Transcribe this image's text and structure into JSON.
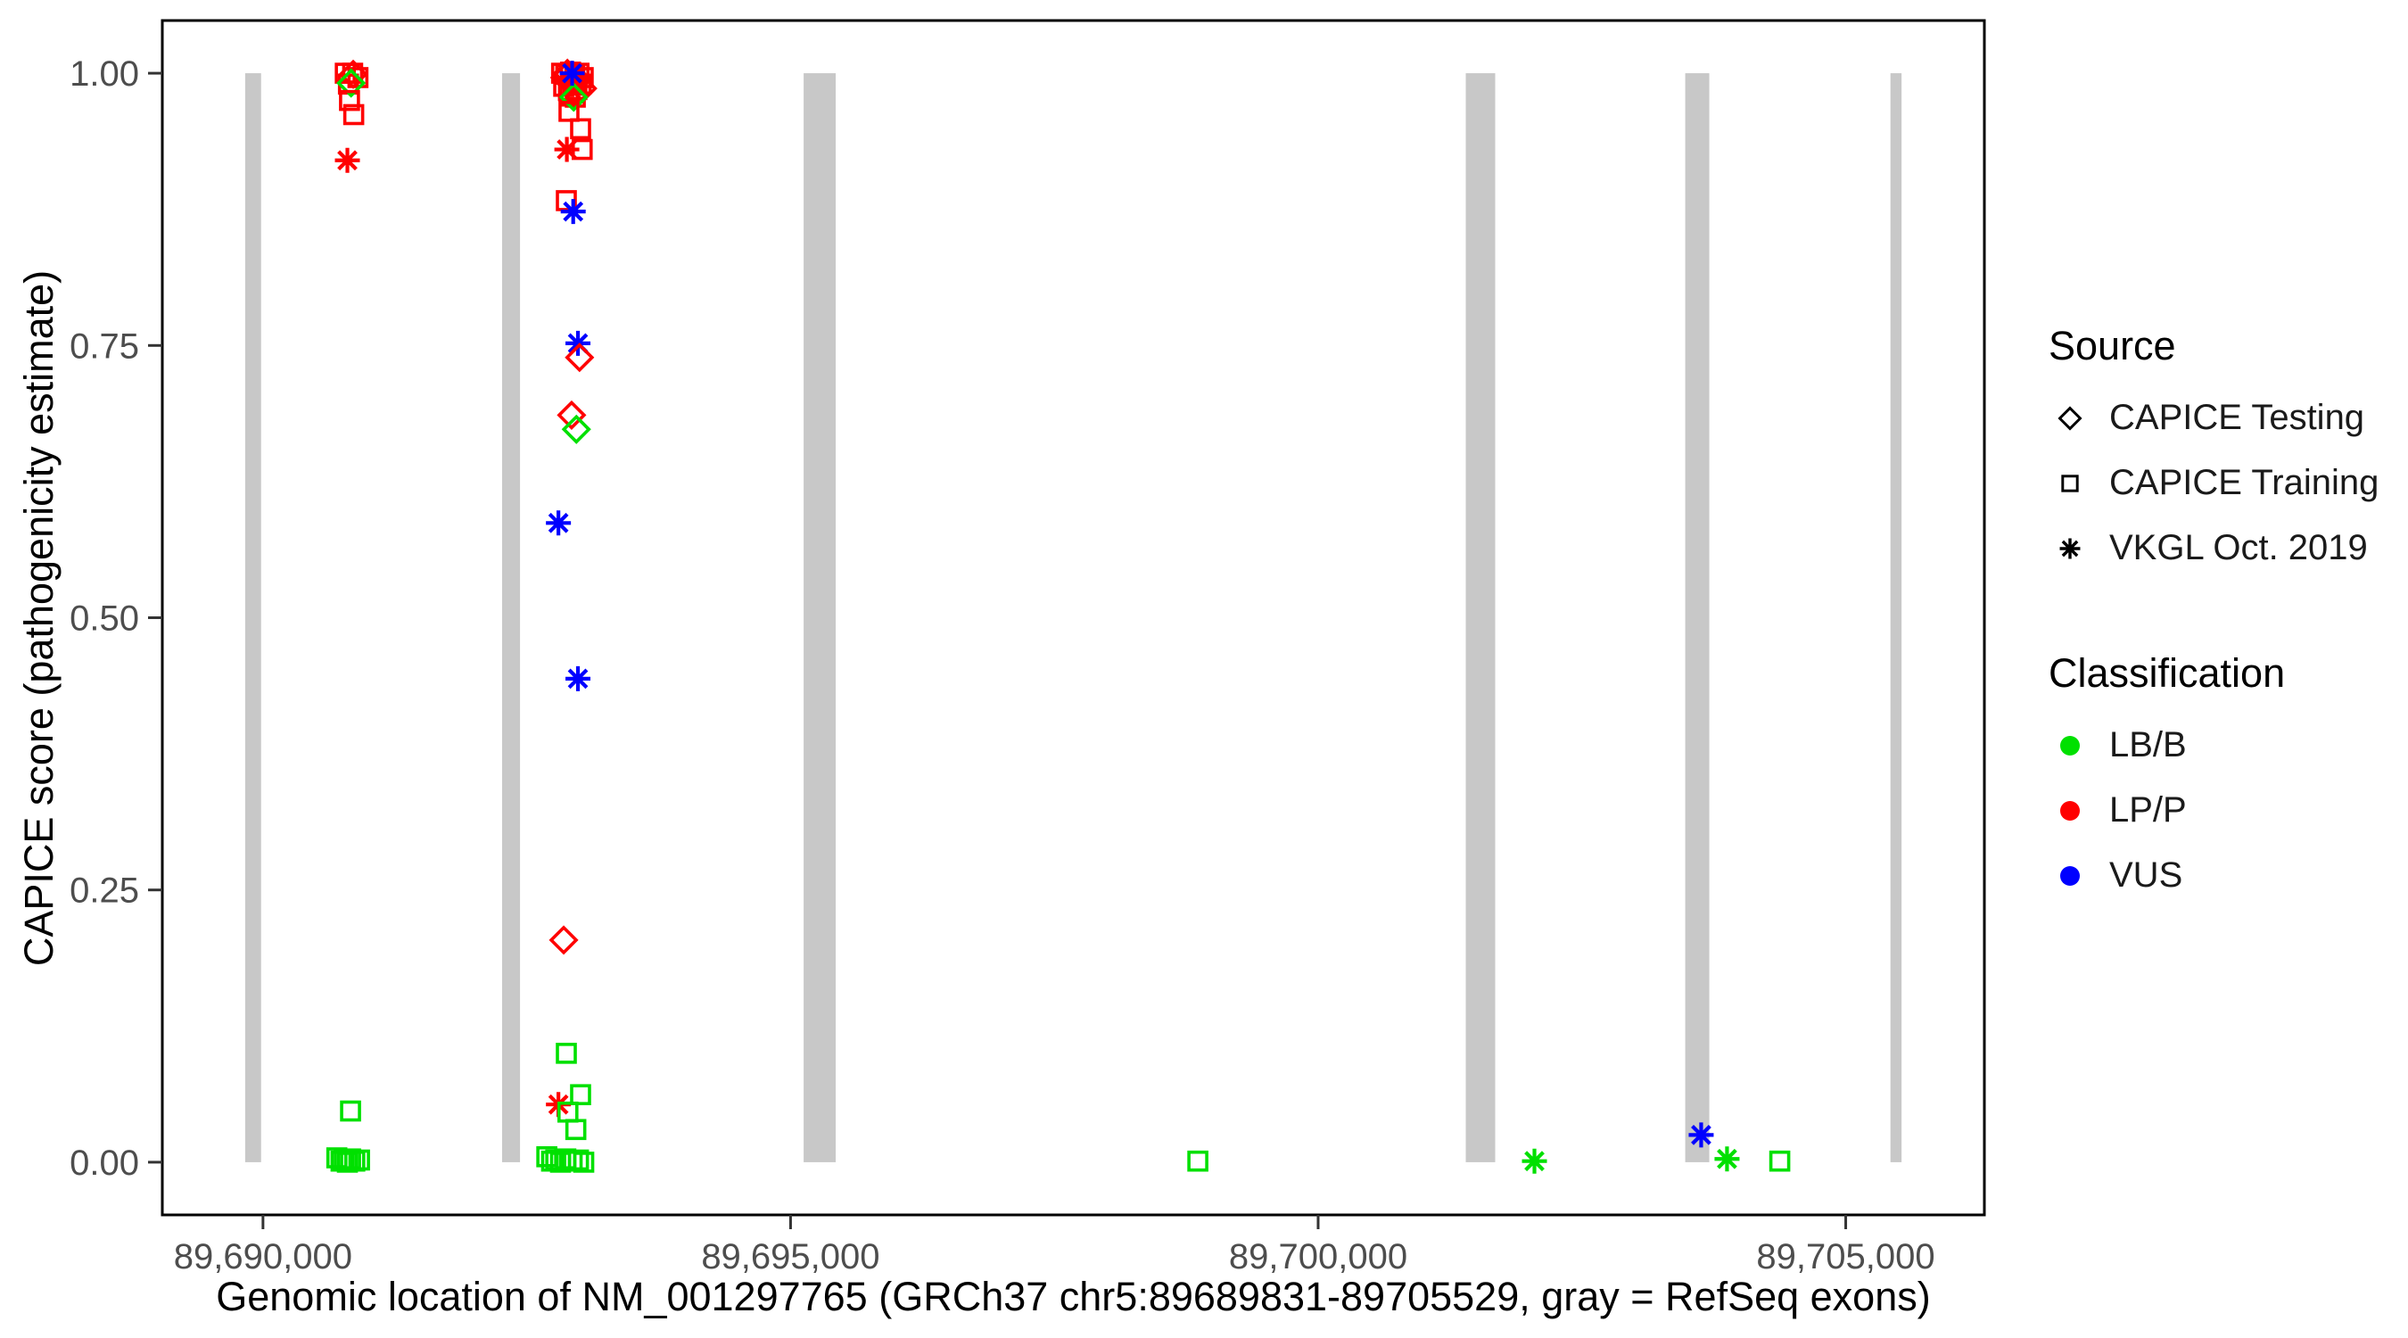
{
  "chart_data": {
    "type": "scatter",
    "title": "",
    "xlabel": "Genomic location of NM_001297765 (GRCh37 chr5:89689831-89705529, gray = RefSeq exons)",
    "ylabel": "CAPICE score (pathogenicity estimate)",
    "xlim": [
      89689046,
      89706314
    ],
    "ylim": [
      -0.0484,
      1.0484
    ],
    "grid": "off",
    "legend_position": "right",
    "x_axis": {
      "ticks": [
        89690000,
        89695000,
        89700000,
        89705000
      ],
      "tick_labels": [
        "89,690,000",
        "89,695,000",
        "89,700,000",
        "89,705,000"
      ]
    },
    "y_axis": {
      "ticks": [
        0.0,
        0.25,
        0.5,
        0.75,
        1.0
      ],
      "tick_labels": [
        "0.00",
        "0.25",
        "0.50",
        "0.75",
        "1.00"
      ]
    },
    "colors": {
      "LB/B": "#00E000",
      "LP/P": "#FF0000",
      "VUS": "#0000FF",
      "exon": "#C8C8C8",
      "axis_text": "#4d4d4d",
      "panel_border": "#000000"
    },
    "shape_by_source": {
      "CAPICE Testing": "diamond",
      "CAPICE Training": "square",
      "VKGL Oct. 2019": "asterisk"
    },
    "legend": {
      "source": {
        "title": "Source",
        "items": [
          {
            "label": "CAPICE Testing",
            "shape": "diamond"
          },
          {
            "label": "CAPICE Training",
            "shape": "square"
          },
          {
            "label": "VKGL Oct. 2019",
            "shape": "asterisk"
          }
        ]
      },
      "classification": {
        "title": "Classification",
        "items": [
          {
            "label": "LB/B",
            "cls": "LB/B"
          },
          {
            "label": "LP/P",
            "cls": "LP/P"
          },
          {
            "label": "VUS",
            "cls": "VUS"
          }
        ]
      }
    },
    "exons_bp": [
      [
        89689831,
        89689982
      ],
      [
        89692266,
        89692436
      ],
      [
        89695124,
        89695428
      ],
      [
        89701399,
        89701678
      ],
      [
        89703479,
        89703707
      ],
      [
        89705424,
        89705529
      ]
    ],
    "exon_score_span": [
      0.0,
      1.0
    ],
    "points": [
      {
        "x": 89690780,
        "y": 1.0,
        "source": "CAPICE Training",
        "cls": "LP/P"
      },
      {
        "x": 89690850,
        "y": 1.0,
        "source": "CAPICE Training",
        "cls": "LP/P"
      },
      {
        "x": 89690900,
        "y": 0.996,
        "source": "CAPICE Training",
        "cls": "LP/P"
      },
      {
        "x": 89690810,
        "y": 0.99,
        "source": "CAPICE Training",
        "cls": "LP/P"
      },
      {
        "x": 89690855,
        "y": 0.999,
        "source": "CAPICE Testing",
        "cls": "LP/P"
      },
      {
        "x": 89690835,
        "y": 0.991,
        "source": "CAPICE Testing",
        "cls": "LB/B"
      },
      {
        "x": 89690820,
        "y": 0.975,
        "source": "CAPICE Training",
        "cls": "LP/P"
      },
      {
        "x": 89690860,
        "y": 0.962,
        "source": "CAPICE Training",
        "cls": "LP/P"
      },
      {
        "x": 89690800,
        "y": 0.92,
        "source": "VKGL Oct. 2019",
        "cls": "LP/P"
      },
      {
        "x": 89690830,
        "y": 0.047,
        "source": "CAPICE Training",
        "cls": "LB/B"
      },
      {
        "x": 89690700,
        "y": 0.004,
        "source": "CAPICE Training",
        "cls": "LB/B"
      },
      {
        "x": 89690740,
        "y": 0.001,
        "source": "CAPICE Training",
        "cls": "LB/B"
      },
      {
        "x": 89690770,
        "y": 0.002,
        "source": "CAPICE Training",
        "cls": "LB/B"
      },
      {
        "x": 89690800,
        "y": 0.0,
        "source": "CAPICE Training",
        "cls": "LB/B"
      },
      {
        "x": 89690830,
        "y": 0.003,
        "source": "CAPICE Training",
        "cls": "LB/B"
      },
      {
        "x": 89690870,
        "y": 0.001,
        "source": "CAPICE Training",
        "cls": "LB/B"
      },
      {
        "x": 89690915,
        "y": 0.002,
        "source": "CAPICE Training",
        "cls": "LB/B"
      },
      {
        "x": 89692830,
        "y": 1.0,
        "source": "CAPICE Training",
        "cls": "LP/P"
      },
      {
        "x": 89692870,
        "y": 0.999,
        "source": "CAPICE Training",
        "cls": "LP/P"
      },
      {
        "x": 89692915,
        "y": 1.001,
        "source": "CAPICE Training",
        "cls": "LP/P"
      },
      {
        "x": 89692955,
        "y": 0.998,
        "source": "CAPICE Training",
        "cls": "LP/P"
      },
      {
        "x": 89692995,
        "y": 1.0,
        "source": "CAPICE Training",
        "cls": "LP/P"
      },
      {
        "x": 89693035,
        "y": 0.996,
        "source": "CAPICE Training",
        "cls": "LP/P"
      },
      {
        "x": 89692850,
        "y": 0.988,
        "source": "CAPICE Training",
        "cls": "LP/P"
      },
      {
        "x": 89692895,
        "y": 0.984,
        "source": "CAPICE Training",
        "cls": "LP/P"
      },
      {
        "x": 89692935,
        "y": 0.989,
        "source": "CAPICE Training",
        "cls": "LP/P"
      },
      {
        "x": 89692975,
        "y": 0.985,
        "source": "CAPICE Training",
        "cls": "LP/P"
      },
      {
        "x": 89693015,
        "y": 0.99,
        "source": "CAPICE Training",
        "cls": "LP/P"
      },
      {
        "x": 89692905,
        "y": 0.979,
        "source": "CAPICE Training",
        "cls": "LP/P"
      },
      {
        "x": 89692960,
        "y": 0.978,
        "source": "CAPICE Training",
        "cls": "LP/P"
      },
      {
        "x": 89692860,
        "y": 0.996,
        "source": "CAPICE Testing",
        "cls": "LP/P"
      },
      {
        "x": 89692920,
        "y": 0.993,
        "source": "CAPICE Testing",
        "cls": "LP/P"
      },
      {
        "x": 89692985,
        "y": 0.994,
        "source": "CAPICE Testing",
        "cls": "LP/P"
      },
      {
        "x": 89693030,
        "y": 0.986,
        "source": "CAPICE Testing",
        "cls": "LP/P"
      },
      {
        "x": 89692885,
        "y": 1.0,
        "source": "CAPICE Testing",
        "cls": "LP/P"
      },
      {
        "x": 89692945,
        "y": 0.978,
        "source": "CAPICE Testing",
        "cls": "LB/B"
      },
      {
        "x": 89692930,
        "y": 1.0,
        "source": "VKGL Oct. 2019",
        "cls": "VUS"
      },
      {
        "x": 89692900,
        "y": 0.965,
        "source": "CAPICE Training",
        "cls": "LP/P"
      },
      {
        "x": 89693010,
        "y": 0.949,
        "source": "CAPICE Training",
        "cls": "LP/P"
      },
      {
        "x": 89692880,
        "y": 0.93,
        "source": "VKGL Oct. 2019",
        "cls": "LP/P"
      },
      {
        "x": 89693025,
        "y": 0.93,
        "source": "CAPICE Training",
        "cls": "LP/P"
      },
      {
        "x": 89692875,
        "y": 0.883,
        "source": "CAPICE Training",
        "cls": "LP/P"
      },
      {
        "x": 89692940,
        "y": 0.873,
        "source": "VKGL Oct. 2019",
        "cls": "VUS"
      },
      {
        "x": 89692985,
        "y": 0.752,
        "source": "VKGL Oct. 2019",
        "cls": "VUS"
      },
      {
        "x": 89693000,
        "y": 0.739,
        "source": "CAPICE Testing",
        "cls": "LP/P"
      },
      {
        "x": 89692925,
        "y": 0.686,
        "source": "CAPICE Testing",
        "cls": "LP/P"
      },
      {
        "x": 89692970,
        "y": 0.673,
        "source": "CAPICE Testing",
        "cls": "LB/B"
      },
      {
        "x": 89692800,
        "y": 0.587,
        "source": "VKGL Oct. 2019",
        "cls": "VUS"
      },
      {
        "x": 89692985,
        "y": 0.444,
        "source": "VKGL Oct. 2019",
        "cls": "VUS"
      },
      {
        "x": 89692850,
        "y": 0.204,
        "source": "CAPICE Testing",
        "cls": "LP/P"
      },
      {
        "x": 89692875,
        "y": 0.1,
        "source": "CAPICE Training",
        "cls": "LB/B"
      },
      {
        "x": 89693010,
        "y": 0.062,
        "source": "CAPICE Training",
        "cls": "LB/B"
      },
      {
        "x": 89692800,
        "y": 0.053,
        "source": "VKGL Oct. 2019",
        "cls": "LP/P"
      },
      {
        "x": 89692890,
        "y": 0.046,
        "source": "CAPICE Training",
        "cls": "LB/B"
      },
      {
        "x": 89692965,
        "y": 0.03,
        "source": "CAPICE Training",
        "cls": "LB/B"
      },
      {
        "x": 89692690,
        "y": 0.005,
        "source": "CAPICE Training",
        "cls": "LB/B"
      },
      {
        "x": 89692735,
        "y": 0.001,
        "source": "CAPICE Training",
        "cls": "LB/B"
      },
      {
        "x": 89692775,
        "y": 0.002,
        "source": "CAPICE Training",
        "cls": "LB/B"
      },
      {
        "x": 89692820,
        "y": 0.0,
        "source": "CAPICE Training",
        "cls": "LB/B"
      },
      {
        "x": 89692870,
        "y": 0.003,
        "source": "CAPICE Training",
        "cls": "LB/B"
      },
      {
        "x": 89692930,
        "y": 0.001,
        "source": "CAPICE Training",
        "cls": "LB/B"
      },
      {
        "x": 89692990,
        "y": 0.002,
        "source": "CAPICE Training",
        "cls": "LB/B"
      },
      {
        "x": 89693040,
        "y": 0.0,
        "source": "CAPICE Training",
        "cls": "LB/B"
      },
      {
        "x": 89698860,
        "y": 0.001,
        "source": "CAPICE Training",
        "cls": "LB/B"
      },
      {
        "x": 89702050,
        "y": 0.001,
        "source": "VKGL Oct. 2019",
        "cls": "LB/B"
      },
      {
        "x": 89703630,
        "y": 0.025,
        "source": "VKGL Oct. 2019",
        "cls": "VUS"
      },
      {
        "x": 89703875,
        "y": 0.003,
        "source": "VKGL Oct. 2019",
        "cls": "LB/B"
      },
      {
        "x": 89704375,
        "y": 0.001,
        "source": "CAPICE Training",
        "cls": "LB/B"
      }
    ]
  }
}
